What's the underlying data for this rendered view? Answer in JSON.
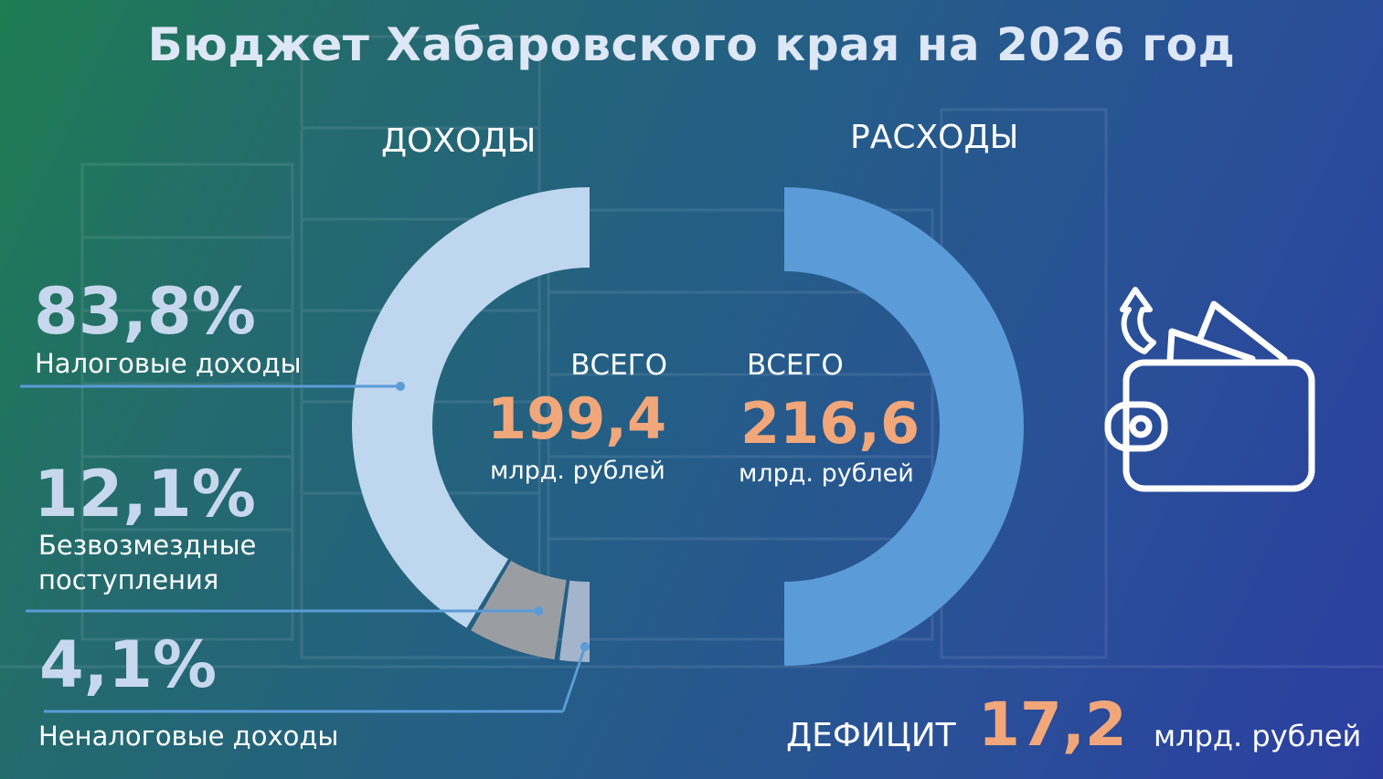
{
  "title": "Бюджет Хабаровского края на 2026 год",
  "chart_data": [
    {
      "type": "pie",
      "title": "ДОХОДЫ",
      "total_label": "ВСЕГО",
      "total_value": "199,4",
      "total_unit": "млрд. рублей",
      "categories": [
        "Налоговые доходы",
        "Безвозмездные поступления",
        "Неналоговые доходы"
      ],
      "values": [
        83.8,
        12.1,
        4.1
      ],
      "value_labels": [
        "83,8%",
        "12,1%",
        "4,1%"
      ],
      "colors": [
        "#bed6ee",
        "#9a9ea3",
        "#a4b4cc"
      ]
    },
    {
      "type": "pie",
      "title": "РАСХОДЫ",
      "total_label": "ВСЕГО",
      "total_value": "216,6",
      "total_unit": "млрд. рублей",
      "values": [
        100
      ],
      "colors": [
        "#5b9bd8"
      ]
    }
  ],
  "deficit": {
    "label": "ДЕФИЦИТ",
    "value": "17,2",
    "unit": "млрд. рублей"
  },
  "icons": [
    "wallet-icon",
    "arrow-up-icon"
  ]
}
